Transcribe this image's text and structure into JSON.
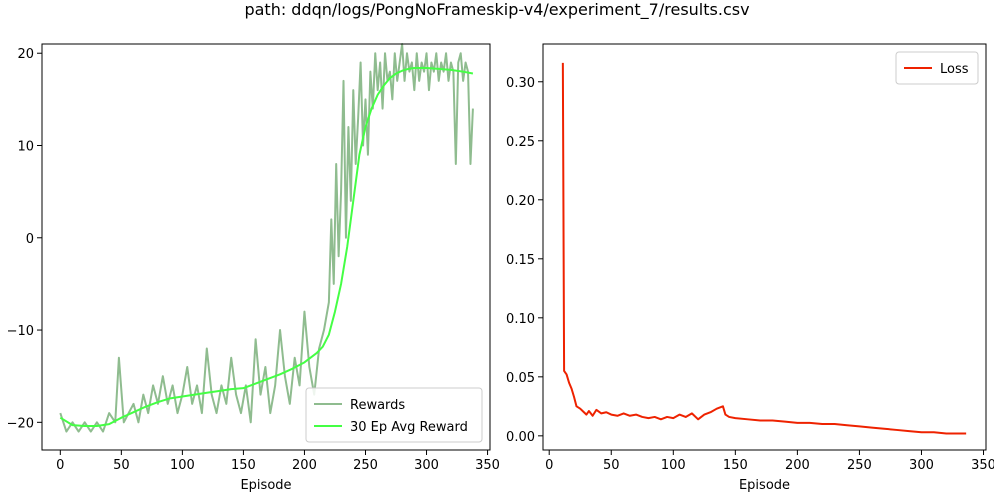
{
  "figure": {
    "title": "path: ddqn/logs/PongNoFrameskip-v4/experiment_7/results.csv"
  },
  "chart_data": [
    {
      "type": "line",
      "xlabel": "Episode",
      "ylabel": "",
      "xlim": [
        -15,
        352
      ],
      "ylim": [
        -23,
        21
      ],
      "xticks": [
        0,
        50,
        100,
        150,
        200,
        250,
        300,
        350
      ],
      "yticks": [
        -20,
        -10,
        0,
        10,
        20
      ],
      "legend": {
        "position": "lower-right"
      },
      "grid": false,
      "series": [
        {
          "name": "Rewards",
          "color": "#8fbc8f",
          "points": [
            [
              0,
              -19
            ],
            [
              5,
              -21
            ],
            [
              10,
              -20
            ],
            [
              15,
              -21
            ],
            [
              20,
              -20
            ],
            [
              25,
              -21
            ],
            [
              30,
              -20
            ],
            [
              35,
              -21
            ],
            [
              40,
              -19
            ],
            [
              45,
              -20
            ],
            [
              48,
              -13
            ],
            [
              52,
              -20
            ],
            [
              56,
              -19
            ],
            [
              60,
              -18
            ],
            [
              64,
              -20
            ],
            [
              68,
              -17
            ],
            [
              72,
              -19
            ],
            [
              76,
              -16
            ],
            [
              80,
              -18
            ],
            [
              84,
              -15
            ],
            [
              88,
              -18
            ],
            [
              92,
              -16
            ],
            [
              96,
              -19
            ],
            [
              100,
              -17
            ],
            [
              104,
              -14
            ],
            [
              108,
              -18
            ],
            [
              112,
              -16
            ],
            [
              116,
              -19
            ],
            [
              120,
              -12
            ],
            [
              124,
              -17
            ],
            [
              128,
              -19
            ],
            [
              132,
              -16
            ],
            [
              136,
              -18
            ],
            [
              140,
              -13
            ],
            [
              144,
              -17
            ],
            [
              148,
              -19
            ],
            [
              152,
              -16
            ],
            [
              156,
              -20
            ],
            [
              160,
              -11
            ],
            [
              164,
              -17
            ],
            [
              168,
              -14
            ],
            [
              172,
              -19
            ],
            [
              176,
              -16
            ],
            [
              180,
              -10
            ],
            [
              184,
              -15
            ],
            [
              188,
              -18
            ],
            [
              192,
              -13
            ],
            [
              196,
              -16
            ],
            [
              200,
              -8
            ],
            [
              204,
              -14
            ],
            [
              208,
              -17
            ],
            [
              212,
              -12
            ],
            [
              216,
              -10
            ],
            [
              220,
              -7
            ],
            [
              222,
              2
            ],
            [
              224,
              -5
            ],
            [
              226,
              8
            ],
            [
              228,
              -2
            ],
            [
              230,
              5
            ],
            [
              232,
              17
            ],
            [
              234,
              0
            ],
            [
              236,
              12
            ],
            [
              238,
              4
            ],
            [
              240,
              16
            ],
            [
              242,
              8
            ],
            [
              244,
              13
            ],
            [
              246,
              19
            ],
            [
              248,
              10
            ],
            [
              250,
              15
            ],
            [
              252,
              9
            ],
            [
              254,
              18
            ],
            [
              256,
              14
            ],
            [
              258,
              20
            ],
            [
              260,
              16
            ],
            [
              262,
              19
            ],
            [
              264,
              14
            ],
            [
              266,
              20
            ],
            [
              268,
              17
            ],
            [
              270,
              18
            ],
            [
              272,
              15
            ],
            [
              274,
              20
            ],
            [
              276,
              17
            ],
            [
              278,
              19
            ],
            [
              280,
              21
            ],
            [
              282,
              17
            ],
            [
              284,
              20
            ],
            [
              286,
              18
            ],
            [
              288,
              19
            ],
            [
              290,
              16
            ],
            [
              292,
              20
            ],
            [
              294,
              17
            ],
            [
              296,
              19
            ],
            [
              298,
              18
            ],
            [
              300,
              20
            ],
            [
              302,
              16
            ],
            [
              304,
              19
            ],
            [
              306,
              18
            ],
            [
              308,
              20
            ],
            [
              310,
              17
            ],
            [
              312,
              19
            ],
            [
              314,
              18
            ],
            [
              316,
              20
            ],
            [
              318,
              17
            ],
            [
              320,
              19
            ],
            [
              322,
              18
            ],
            [
              324,
              8
            ],
            [
              326,
              19
            ],
            [
              328,
              20
            ],
            [
              330,
              17
            ],
            [
              332,
              19
            ],
            [
              334,
              18
            ],
            [
              336,
              8
            ],
            [
              338,
              14
            ]
          ]
        },
        {
          "name": "30 Ep Avg Reward",
          "color": "#44ff44",
          "points": [
            [
              0,
              -19.5
            ],
            [
              10,
              -20.3
            ],
            [
              20,
              -20.4
            ],
            [
              30,
              -20.4
            ],
            [
              40,
              -20.2
            ],
            [
              50,
              -19.5
            ],
            [
              60,
              -18.9
            ],
            [
              70,
              -18.3
            ],
            [
              80,
              -17.8
            ],
            [
              90,
              -17.4
            ],
            [
              100,
              -17.2
            ],
            [
              110,
              -17.0
            ],
            [
              120,
              -16.8
            ],
            [
              130,
              -16.6
            ],
            [
              140,
              -16.4
            ],
            [
              150,
              -16.3
            ],
            [
              160,
              -15.8
            ],
            [
              170,
              -15.3
            ],
            [
              180,
              -14.8
            ],
            [
              190,
              -14.2
            ],
            [
              200,
              -13.5
            ],
            [
              210,
              -12.5
            ],
            [
              215,
              -11.8
            ],
            [
              220,
              -10.5
            ],
            [
              225,
              -8
            ],
            [
              230,
              -5
            ],
            [
              235,
              -1
            ],
            [
              240,
              4
            ],
            [
              245,
              9
            ],
            [
              250,
              12
            ],
            [
              255,
              14
            ],
            [
              260,
              15.5
            ],
            [
              265,
              16.5
            ],
            [
              270,
              17.3
            ],
            [
              275,
              17.8
            ],
            [
              280,
              18.1
            ],
            [
              285,
              18.3
            ],
            [
              290,
              18.4
            ],
            [
              300,
              18.4
            ],
            [
              310,
              18.3
            ],
            [
              320,
              18.2
            ],
            [
              330,
              18.0
            ],
            [
              338,
              17.8
            ]
          ]
        }
      ]
    },
    {
      "type": "line",
      "xlabel": "Episode",
      "ylabel": "",
      "xlim": [
        -5,
        352
      ],
      "ylim": [
        -0.012,
        0.332
      ],
      "xticks": [
        0,
        50,
        100,
        150,
        200,
        250,
        300,
        350
      ],
      "yticks": [
        0.0,
        0.05,
        0.1,
        0.15,
        0.2,
        0.25,
        0.3
      ],
      "ytick_labels": [
        "0.00",
        "0.05",
        "0.10",
        "0.15",
        "0.20",
        "0.25",
        "0.30"
      ],
      "legend": {
        "position": "upper-right"
      },
      "grid": false,
      "series": [
        {
          "name": "Loss",
          "color": "#ee2200",
          "points": [
            [
              11,
              0.316
            ],
            [
              12,
              0.055
            ],
            [
              14,
              0.052
            ],
            [
              16,
              0.045
            ],
            [
              18,
              0.04
            ],
            [
              20,
              0.033
            ],
            [
              22,
              0.025
            ],
            [
              25,
              0.023
            ],
            [
              28,
              0.02
            ],
            [
              30,
              0.018
            ],
            [
              32,
              0.021
            ],
            [
              35,
              0.017
            ],
            [
              38,
              0.022
            ],
            [
              42,
              0.019
            ],
            [
              46,
              0.02
            ],
            [
              50,
              0.018
            ],
            [
              55,
              0.017
            ],
            [
              60,
              0.019
            ],
            [
              65,
              0.017
            ],
            [
              70,
              0.018
            ],
            [
              75,
              0.016
            ],
            [
              80,
              0.015
            ],
            [
              85,
              0.016
            ],
            [
              90,
              0.014
            ],
            [
              95,
              0.016
            ],
            [
              100,
              0.015
            ],
            [
              105,
              0.018
            ],
            [
              110,
              0.016
            ],
            [
              115,
              0.019
            ],
            [
              120,
              0.014
            ],
            [
              125,
              0.018
            ],
            [
              130,
              0.02
            ],
            [
              135,
              0.023
            ],
            [
              140,
              0.025
            ],
            [
              142,
              0.018
            ],
            [
              145,
              0.016
            ],
            [
              150,
              0.015
            ],
            [
              160,
              0.014
            ],
            [
              170,
              0.013
            ],
            [
              180,
              0.013
            ],
            [
              190,
              0.012
            ],
            [
              200,
              0.011
            ],
            [
              210,
              0.011
            ],
            [
              220,
              0.01
            ],
            [
              230,
              0.01
            ],
            [
              240,
              0.009
            ],
            [
              250,
              0.008
            ],
            [
              260,
              0.007
            ],
            [
              270,
              0.006
            ],
            [
              280,
              0.005
            ],
            [
              290,
              0.004
            ],
            [
              300,
              0.003
            ],
            [
              310,
              0.003
            ],
            [
              320,
              0.002
            ],
            [
              330,
              0.002
            ],
            [
              336,
              0.002
            ]
          ]
        }
      ]
    }
  ]
}
